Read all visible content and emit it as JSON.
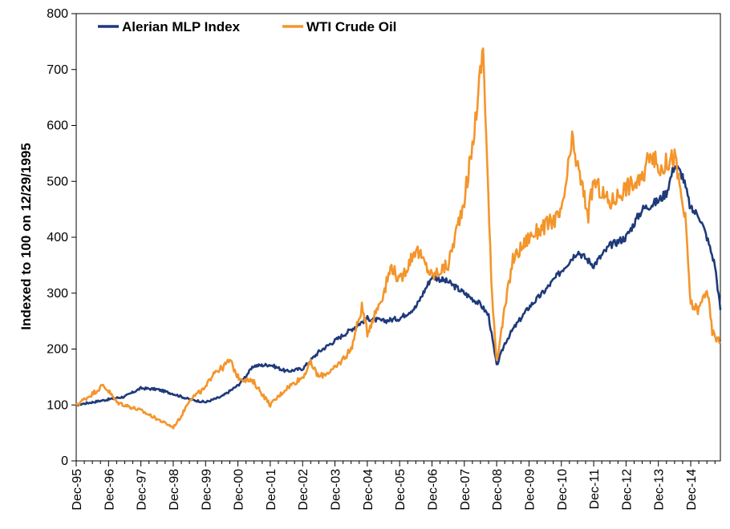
{
  "chart_data": {
    "type": "line",
    "title": "",
    "xlabel": "",
    "ylabel": "Indexed to 100 on 12/29/1995",
    "ylim": [
      0,
      800
    ],
    "yticks": [
      0,
      100,
      200,
      300,
      400,
      500,
      600,
      700,
      800
    ],
    "xlim": [
      "1995-12",
      "2015-11"
    ],
    "xticks": [
      "Dec-95",
      "Dec-96",
      "Dec-97",
      "Dec-98",
      "Dec-99",
      "Dec-00",
      "Dec-01",
      "Dec-02",
      "Dec-03",
      "Dec-04",
      "Dec-05",
      "Dec-06",
      "Dec-07",
      "Dec-08",
      "Dec-09",
      "Dec-10",
      "Dec-11",
      "Dec-12",
      "Dec-13",
      "Dec-14"
    ],
    "grid": false,
    "legend": "top-left",
    "series": [
      {
        "name": "Alerian MLP Index",
        "color": "#1f3a7a",
        "x": [
          "1995-12",
          "1996-06",
          "1996-12",
          "1997-06",
          "1997-12",
          "1998-06",
          "1998-12",
          "1999-03",
          "1999-06",
          "1999-12",
          "2000-06",
          "2000-12",
          "2001-06",
          "2001-12",
          "2002-06",
          "2002-12",
          "2003-06",
          "2003-12",
          "2004-06",
          "2004-12",
          "2005-06",
          "2005-12",
          "2006-06",
          "2006-12",
          "2007-06",
          "2007-12",
          "2008-06",
          "2008-09",
          "2008-12",
          "2009-03",
          "2009-06",
          "2009-12",
          "2010-06",
          "2010-12",
          "2011-06",
          "2011-12",
          "2012-06",
          "2012-12",
          "2013-06",
          "2013-12",
          "2014-03",
          "2014-06",
          "2014-09",
          "2014-12",
          "2015-03",
          "2015-06",
          "2015-09",
          "2015-11"
        ],
        "values": [
          100,
          105,
          110,
          115,
          130,
          128,
          120,
          115,
          110,
          105,
          115,
          135,
          170,
          172,
          160,
          165,
          195,
          215,
          235,
          255,
          250,
          255,
          275,
          330,
          320,
          300,
          280,
          260,
          170,
          210,
          235,
          275,
          305,
          340,
          375,
          350,
          385,
          400,
          450,
          465,
          480,
          530,
          510,
          450,
          440,
          400,
          350,
          270
        ]
      },
      {
        "name": "WTI Crude Oil",
        "color": "#f4952b",
        "x": [
          "1995-12",
          "1996-03",
          "1996-06",
          "1996-10",
          "1996-12",
          "1997-03",
          "1997-06",
          "1997-12",
          "1998-06",
          "1998-12",
          "1999-03",
          "1999-06",
          "1999-12",
          "2000-03",
          "2000-06",
          "2000-09",
          "2000-12",
          "2001-06",
          "2001-12",
          "2002-06",
          "2002-12",
          "2003-03",
          "2003-06",
          "2003-12",
          "2004-06",
          "2004-10",
          "2004-12",
          "2005-06",
          "2005-09",
          "2005-12",
          "2006-06",
          "2006-12",
          "2007-06",
          "2007-12",
          "2008-03",
          "2008-07",
          "2008-10",
          "2008-12",
          "2009-06",
          "2009-12",
          "2010-06",
          "2010-12",
          "2011-04",
          "2011-10",
          "2011-12",
          "2012-06",
          "2012-12",
          "2013-06",
          "2013-09",
          "2013-12",
          "2014-06",
          "2014-10",
          "2014-12",
          "2015-03",
          "2015-06",
          "2015-08",
          "2015-11"
        ],
        "values": [
          100,
          110,
          120,
          135,
          125,
          105,
          100,
          90,
          75,
          60,
          80,
          110,
          130,
          160,
          165,
          180,
          150,
          140,
          100,
          130,
          150,
          175,
          150,
          165,
          200,
          275,
          230,
          300,
          350,
          320,
          380,
          330,
          350,
          470,
          560,
          740,
          320,
          180,
          360,
          400,
          420,
          440,
          570,
          440,
          500,
          460,
          490,
          500,
          560,
          520,
          545,
          430,
          280,
          270,
          310,
          230,
          210
        ]
      }
    ]
  }
}
